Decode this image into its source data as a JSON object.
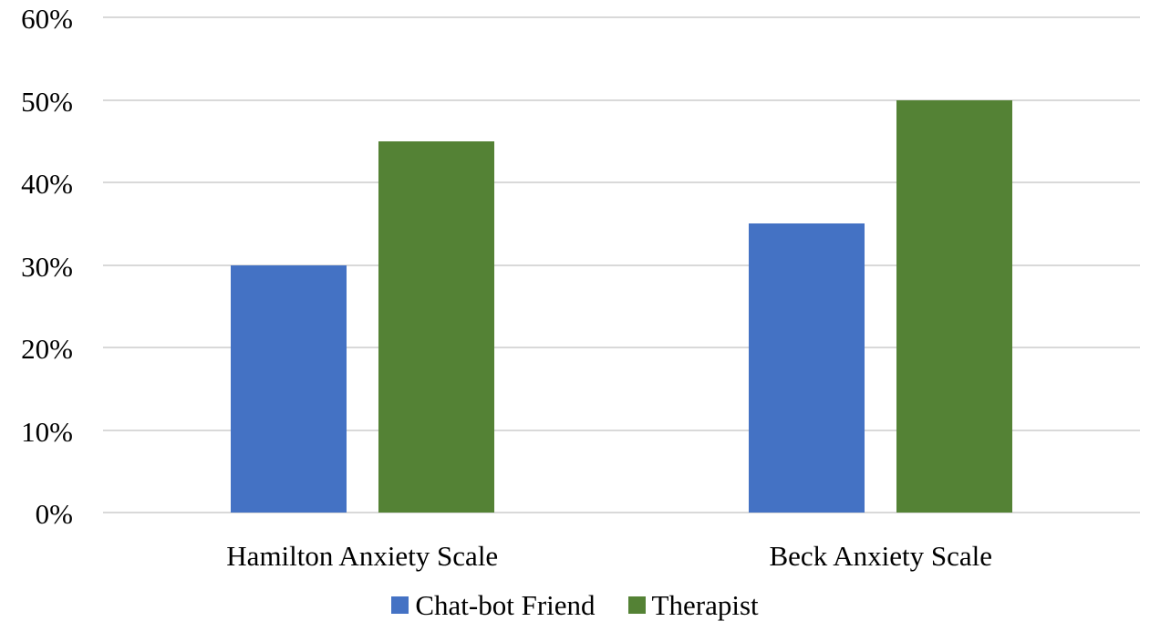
{
  "chart_data": {
    "type": "bar",
    "title": "",
    "xlabel": "",
    "ylabel": "",
    "categories": [
      "Hamilton Anxiety Scale",
      "Beck Anxiety Scale"
    ],
    "series": [
      {
        "name": "Chat-bot Friend",
        "color": "#4472c4",
        "values": [
          30,
          35
        ]
      },
      {
        "name": "Therapist",
        "color": "#548235",
        "values": [
          45,
          50
        ]
      }
    ],
    "ylim": [
      0,
      60
    ],
    "yticks": [
      0,
      10,
      20,
      30,
      40,
      50,
      60
    ],
    "ytick_labels": [
      "0%",
      "10%",
      "20%",
      "30%",
      "40%",
      "50%",
      "60%"
    ],
    "grid": true,
    "legend_position": "bottom"
  }
}
